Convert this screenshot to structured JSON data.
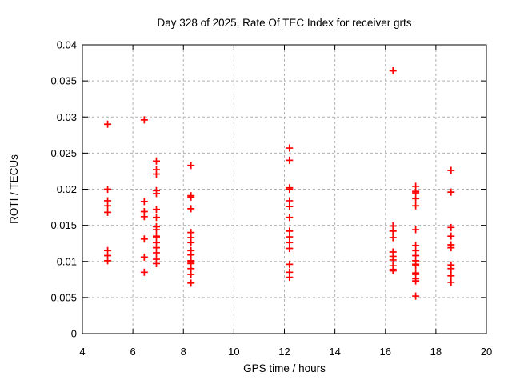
{
  "chart_data": {
    "type": "scatter",
    "title": "Day 328 of 2025, Rate Of TEC Index for receiver grts",
    "xlabel": "GPS time / hours",
    "ylabel": "ROTI / TECUs",
    "xlim": [
      4,
      20
    ],
    "ylim": [
      0,
      0.04
    ],
    "xticks": [
      4,
      6,
      8,
      10,
      12,
      14,
      16,
      18,
      20
    ],
    "xtick_labels": [
      "4",
      "6",
      "8",
      "10",
      "12",
      "14",
      "16",
      "18",
      "20"
    ],
    "yticks": [
      0,
      0.005,
      0.01,
      0.015,
      0.02,
      0.025,
      0.03,
      0.035,
      0.04
    ],
    "ytick_labels": [
      "0",
      "0.005",
      "0.01",
      "0.015",
      "0.02",
      "0.025",
      "0.03",
      "0.035",
      "0.04"
    ],
    "grid": "dashed-both-axes",
    "legend": "none",
    "marker": "plus",
    "colors": {
      "marker": "#ff0000",
      "grid": "#b0b0b0",
      "axis": "#000000",
      "background": "#ffffff",
      "text": "#000000"
    },
    "series": [
      {
        "name": "ROTI",
        "points": [
          [
            5.0,
            0.029
          ],
          [
            5.0,
            0.02
          ],
          [
            5.0,
            0.0184
          ],
          [
            5.0,
            0.0177
          ],
          [
            5.0,
            0.0168
          ],
          [
            5.0,
            0.0115
          ],
          [
            5.0,
            0.0108
          ],
          [
            5.0,
            0.0101
          ],
          [
            6.45,
            0.0296
          ],
          [
            6.45,
            0.0183
          ],
          [
            6.45,
            0.0169
          ],
          [
            6.45,
            0.0162
          ],
          [
            6.45,
            0.0131
          ],
          [
            6.45,
            0.0106
          ],
          [
            6.45,
            0.0085
          ],
          [
            6.93,
            0.0239
          ],
          [
            6.93,
            0.0227
          ],
          [
            6.93,
            0.0221
          ],
          [
            6.93,
            0.0198
          ],
          [
            6.93,
            0.0194
          ],
          [
            6.93,
            0.0172
          ],
          [
            6.93,
            0.0161
          ],
          [
            6.93,
            0.0148
          ],
          [
            6.93,
            0.0144
          ],
          [
            6.93,
            0.0135
          ],
          [
            6.93,
            0.0133
          ],
          [
            6.93,
            0.0126
          ],
          [
            6.93,
            0.0119
          ],
          [
            6.93,
            0.0112
          ],
          [
            6.93,
            0.0103
          ],
          [
            6.93,
            0.0097
          ],
          [
            8.3,
            0.0233
          ],
          [
            8.3,
            0.0191
          ],
          [
            8.3,
            0.0189
          ],
          [
            8.3,
            0.0173
          ],
          [
            8.3,
            0.014
          ],
          [
            8.3,
            0.0133
          ],
          [
            8.3,
            0.0126
          ],
          [
            8.3,
            0.0115
          ],
          [
            8.3,
            0.0109
          ],
          [
            8.3,
            0.0101
          ],
          [
            8.3,
            0.0099
          ],
          [
            8.3,
            0.0097
          ],
          [
            8.3,
            0.009
          ],
          [
            8.3,
            0.0082
          ],
          [
            8.3,
            0.007
          ],
          [
            12.2,
            0.0257
          ],
          [
            12.2,
            0.024
          ],
          [
            12.2,
            0.0202
          ],
          [
            12.2,
            0.02
          ],
          [
            12.2,
            0.0184
          ],
          [
            12.2,
            0.0176
          ],
          [
            12.2,
            0.0161
          ],
          [
            12.2,
            0.0142
          ],
          [
            12.2,
            0.0134
          ],
          [
            12.2,
            0.0126
          ],
          [
            12.2,
            0.0118
          ],
          [
            12.2,
            0.0096
          ],
          [
            12.2,
            0.0085
          ],
          [
            12.2,
            0.0078
          ],
          [
            16.3,
            0.0364
          ],
          [
            16.3,
            0.0149
          ],
          [
            16.3,
            0.0142
          ],
          [
            16.3,
            0.0133
          ],
          [
            16.3,
            0.0113
          ],
          [
            16.3,
            0.0107
          ],
          [
            16.3,
            0.0102
          ],
          [
            16.3,
            0.0094
          ],
          [
            16.3,
            0.0089
          ],
          [
            16.3,
            0.0087
          ],
          [
            17.2,
            0.0204
          ],
          [
            17.2,
            0.0197
          ],
          [
            17.2,
            0.0195
          ],
          [
            17.2,
            0.0187
          ],
          [
            17.2,
            0.0177
          ],
          [
            17.2,
            0.0144
          ],
          [
            17.2,
            0.0122
          ],
          [
            17.2,
            0.0115
          ],
          [
            17.2,
            0.0108
          ],
          [
            17.2,
            0.0101
          ],
          [
            17.2,
            0.0096
          ],
          [
            17.2,
            0.0094
          ],
          [
            17.2,
            0.0084
          ],
          [
            17.2,
            0.0082
          ],
          [
            17.2,
            0.0076
          ],
          [
            17.2,
            0.0073
          ],
          [
            17.2,
            0.0052
          ],
          [
            18.6,
            0.0226
          ],
          [
            18.6,
            0.0196
          ],
          [
            18.6,
            0.0147
          ],
          [
            18.6,
            0.0135
          ],
          [
            18.6,
            0.0123
          ],
          [
            18.6,
            0.0119
          ],
          [
            18.6,
            0.0095
          ],
          [
            18.6,
            0.009
          ],
          [
            18.6,
            0.008
          ],
          [
            18.6,
            0.0071
          ]
        ]
      }
    ]
  }
}
